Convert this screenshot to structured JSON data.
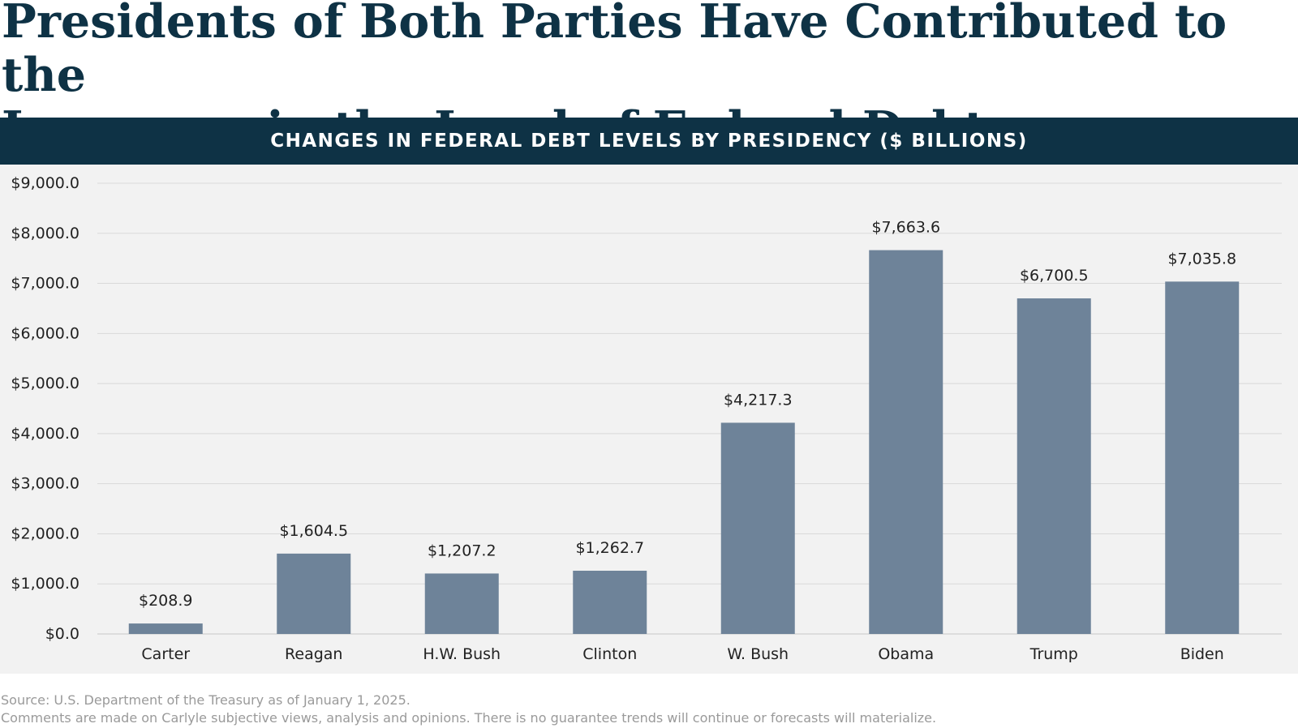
{
  "title_line1": "Presidents of Both Parties Have Contributed to the",
  "title_line2": "Increases in the Level of Federal Debt",
  "source": "Source: U.S. Department of the Treasury as of January 1, 2025.",
  "disclaimer": "Comments are made on Carlyle subjective views, analysis and opinions. There is no guarantee trends will continue or forecasts will materialize.",
  "colors": {
    "bar": "#6e8399",
    "banner": "#0e3245",
    "title": "#0e3245",
    "grid": "#d9d9d9"
  },
  "chart_data": {
    "type": "bar",
    "title": "CHANGES IN FEDERAL DEBT LEVELS BY PRESIDENCY ($ BILLIONS)",
    "categories": [
      "Carter",
      "Reagan",
      "H.W. Bush",
      "Clinton",
      "W. Bush",
      "Obama",
      "Trump",
      "Biden"
    ],
    "values": [
      208.9,
      1604.5,
      1207.2,
      1262.7,
      4217.3,
      7663.6,
      6700.5,
      7035.8
    ],
    "value_labels": [
      "$208.9",
      "$1,604.5",
      "$1,207.2",
      "$1,262.7",
      "$4,217.3",
      "$7,663.6",
      "$6,700.5",
      "$7,035.8"
    ],
    "yticks": [
      0,
      1000,
      2000,
      3000,
      4000,
      5000,
      6000,
      7000,
      8000,
      9000
    ],
    "ytick_labels": [
      "$0.0",
      "$1,000.0",
      "$2,000.0",
      "$3,000.0",
      "$4,000.0",
      "$5,000.0",
      "$6,000.0",
      "$7,000.0",
      "$8,000.0",
      "$9,000.0"
    ],
    "ylim": [
      0,
      9000
    ],
    "xlabel": "",
    "ylabel": "",
    "grid": true,
    "legend": "none"
  }
}
